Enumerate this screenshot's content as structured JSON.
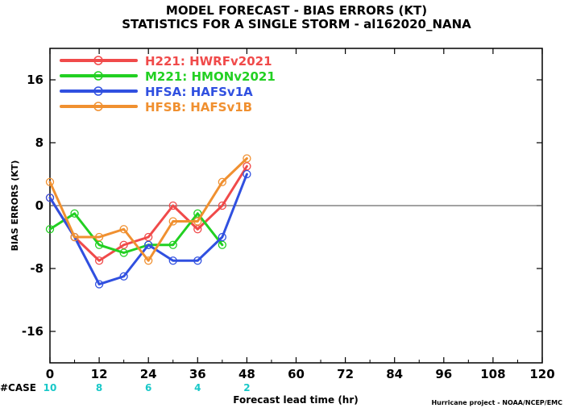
{
  "chart_data": {
    "type": "line",
    "title": "MODEL FORECAST - BIAS ERRORS (KT)",
    "subtitle": "STATISTICS FOR A SINGLE STORM - al162020_NANA",
    "xlabel": "Forecast lead time (hr)",
    "ylabel": "BIAS ERRORS (KT)",
    "xlim": [
      0,
      120
    ],
    "ylim": [
      -20,
      20
    ],
    "xticks": [
      0,
      12,
      24,
      36,
      48,
      60,
      72,
      84,
      96,
      108,
      120
    ],
    "yticks": [
      -16,
      -8,
      0,
      8,
      16
    ],
    "grid": false,
    "zero_line": true,
    "legend_position": "top-left",
    "case_label": "#CASE",
    "cases": [
      {
        "x": 0,
        "n": 10
      },
      {
        "x": 12,
        "n": 8
      },
      {
        "x": 24,
        "n": 6
      },
      {
        "x": 36,
        "n": 4
      },
      {
        "x": 48,
        "n": 2
      }
    ],
    "case_color": "#18c8c8",
    "credit": "Hurricane project - NOAA/NCEP/EMC",
    "series": [
      {
        "name": "H221:",
        "desc": "HWRFv2021",
        "color": "#f04a4a",
        "x": [
          0,
          6,
          12,
          18,
          24,
          30,
          36,
          42,
          48
        ],
        "y": [
          1,
          -4,
          -7,
          -5,
          -4,
          0,
          -3,
          0,
          5
        ]
      },
      {
        "name": "M221:",
        "desc": "HMONv2021",
        "color": "#22d022",
        "x": [
          0,
          6,
          12,
          18,
          24,
          30,
          36,
          42
        ],
        "y": [
          -3,
          -1,
          -5,
          -6,
          -5,
          -5,
          -1,
          -5
        ]
      },
      {
        "name": "HFSA:",
        "desc": "HAFSv1A",
        "color": "#3050e0",
        "x": [
          0,
          6,
          12,
          18,
          24,
          30,
          36,
          42,
          48
        ],
        "y": [
          1,
          -4,
          -10,
          -9,
          -5,
          -7,
          -7,
          -4,
          4
        ]
      },
      {
        "name": "HFSB:",
        "desc": "HAFSv1B",
        "color": "#f09030",
        "x": [
          0,
          6,
          12,
          18,
          24,
          30,
          36,
          42,
          48
        ],
        "y": [
          3,
          -4,
          -4,
          -3,
          -7,
          -2,
          -2,
          3,
          6
        ]
      }
    ]
  }
}
